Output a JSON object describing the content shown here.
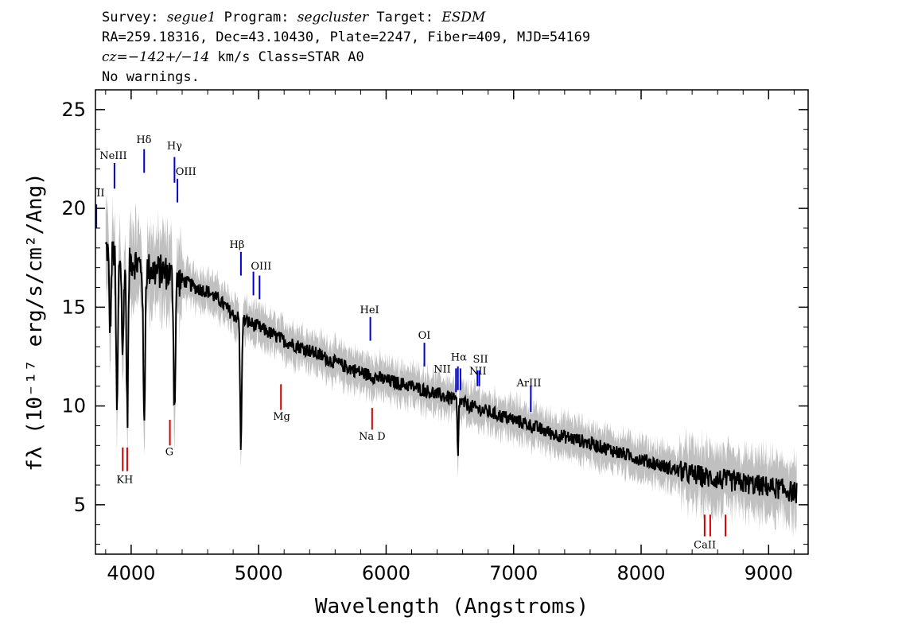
{
  "header": {
    "line1": {
      "survey_label": "Survey: ",
      "survey": "segue1",
      "program_label": " Program: ",
      "program": "segcluster",
      "target_label": " Target: ",
      "target": "ESDM"
    },
    "line2": "RA=259.18316, Dec=43.10430, Plate=2247, Fiber=409, MJD=54169",
    "line3": {
      "cz": "cz=−142+/−14",
      "rest": " km/s Class=STAR A0"
    },
    "line4": "No warnings."
  },
  "chart_data": {
    "type": "line",
    "xlabel": "Wavelength (Angstroms)",
    "ylabel": "fλ (10⁻¹⁷ erg/s/cm²/Ang)",
    "xlim": [
      3720,
      9310
    ],
    "ylim": [
      2.5,
      26
    ],
    "x_ticks": [
      4000,
      5000,
      6000,
      7000,
      8000,
      9000
    ],
    "y_ticks": [
      5,
      10,
      15,
      20,
      25
    ],
    "series": [
      {
        "color": "#000000",
        "x": [
          3800,
          3850,
          3900,
          3950,
          4000,
          4050,
          4100,
          4150,
          4200,
          4250,
          4300,
          4350,
          4400,
          4450,
          4500,
          4600,
          4700,
          4800,
          4900,
          5000,
          5200,
          5400,
          5600,
          5800,
          6000,
          6200,
          6400,
          6500,
          6700,
          6900,
          7100,
          7300,
          7500,
          7700,
          7900,
          8100,
          8300,
          8500,
          8700,
          8900,
          9100,
          9220
        ],
        "y": [
          18.0,
          17.8,
          17.6,
          17.5,
          17.4,
          17.2,
          17.0,
          16.9,
          16.8,
          16.8,
          16.7,
          16.3,
          16.4,
          16.2,
          16.0,
          15.8,
          15.3,
          14.6,
          14.3,
          14.0,
          13.3,
          12.8,
          12.2,
          11.7,
          11.3,
          11.0,
          10.6,
          10.4,
          9.9,
          9.5,
          9.1,
          8.6,
          8.3,
          7.9,
          7.5,
          7.1,
          6.7,
          6.4,
          6.2,
          6.0,
          5.8,
          5.6
        ]
      }
    ],
    "absorption_lines_flux": [
      {
        "x": 3835,
        "depth": 4.0
      },
      {
        "x": 3889,
        "depth": 8.0
      },
      {
        "x": 3934,
        "depth": 5.0
      },
      {
        "x": 3970,
        "depth": 8.0
      },
      {
        "x": 4102,
        "depth": 8.0
      },
      {
        "x": 4340,
        "depth": 6.5
      },
      {
        "x": 4861,
        "depth": 6.5
      },
      {
        "x": 6563,
        "depth": 3.0
      }
    ],
    "emission_lines": [
      {
        "label": "NeIII",
        "x": 3869,
        "y1": 22.3,
        "y2": 21.0
      },
      {
        "label": "Hδ",
        "x": 4102,
        "y1": 23.0,
        "y2": 21.8
      },
      {
        "label": "Hγ",
        "x": 4340,
        "y1": 22.6,
        "y2": 21.3
      },
      {
        "label": "OIII",
        "x": 4363,
        "y1": 21.5,
        "y2": 20.3
      },
      {
        "label": "OII",
        "x": 3727,
        "y1": 20.2,
        "y2": 19.0
      },
      {
        "label": "Hβ",
        "x": 4861,
        "y1": 17.8,
        "y2": 16.6
      },
      {
        "label": "OIII",
        "x": 4959,
        "y1": 16.8,
        "y2": 15.6
      },
      {
        "label": "OIII",
        "x": 5007,
        "y1": 16.6,
        "y2": 15.4
      },
      {
        "label": "HeI",
        "x": 5876,
        "y1": 14.5,
        "y2": 13.3
      },
      {
        "label": "OI",
        "x": 6300,
        "y1": 13.2,
        "y2": 12.0
      },
      {
        "label": "NII",
        "x": 6548,
        "y1": 11.9,
        "y2": 10.7
      },
      {
        "label": "Hα",
        "x": 6563,
        "y1": 12.0,
        "y2": 10.8
      },
      {
        "label": "NII",
        "x": 6583,
        "y1": 11.9,
        "y2": 10.8
      },
      {
        "label": "SII",
        "x": 6716,
        "y1": 11.8,
        "y2": 11.0
      },
      {
        "label": "SII",
        "x": 6731,
        "y1": 11.8,
        "y2": 11.0
      },
      {
        "label": "ArIII",
        "x": 7135,
        "y1": 11.0,
        "y2": 9.7
      }
    ],
    "absorption_lines": [
      {
        "label": "K",
        "x": 3934,
        "y1": 7.9,
        "y2": 6.7
      },
      {
        "label": "H",
        "x": 3969,
        "y1": 7.9,
        "y2": 6.7
      },
      {
        "label": "G",
        "x": 4304,
        "y1": 9.3,
        "y2": 8.0
      },
      {
        "label": "Mg",
        "x": 5175,
        "y1": 11.1,
        "y2": 9.8
      },
      {
        "label": "Na",
        "x": 5890,
        "y1": 9.9,
        "y2": 8.8
      },
      {
        "label": "CaII",
        "x": 8498,
        "y1": 4.5,
        "y2": 3.4
      },
      {
        "label": "CaII",
        "x": 8542,
        "y1": 4.5,
        "y2": 3.4
      },
      {
        "label": "CaII",
        "x": 8662,
        "y1": 4.5,
        "y2": 3.4
      }
    ],
    "line_label_texts": {
      "emission": [
        {
          "text": "II",
          "x": 3760,
          "y": 20.6
        },
        {
          "text": "NeIII",
          "x": 3860,
          "y": 22.5
        },
        {
          "text": "Hδ",
          "x": 4100,
          "y": 23.3
        },
        {
          "text": "Hγ",
          "x": 4340,
          "y": 23.0
        },
        {
          "text": "OIII",
          "x": 4430,
          "y": 21.7
        },
        {
          "text": "Hβ",
          "x": 4830,
          "y": 18.0
        },
        {
          "text": "OIII",
          "x": 5020,
          "y": 16.9
        },
        {
          "text": "HeI",
          "x": 5870,
          "y": 14.7
        },
        {
          "text": "OI",
          "x": 6300,
          "y": 13.4
        },
        {
          "text": "NII",
          "x": 6440,
          "y": 11.7
        },
        {
          "text": "Hα",
          "x": 6570,
          "y": 12.3
        },
        {
          "text": "SII",
          "x": 6740,
          "y": 12.2
        },
        {
          "text": "NII",
          "x": 6720,
          "y": 11.6
        },
        {
          "text": "ArIII",
          "x": 7120,
          "y": 11.0
        }
      ],
      "absorption": [
        {
          "text": "KH",
          "x": 3950,
          "y": 6.1
        },
        {
          "text": "G",
          "x": 4300,
          "y": 7.5
        },
        {
          "text": "Mg",
          "x": 5180,
          "y": 9.3
        },
        {
          "text": "Na  D",
          "x": 5890,
          "y": 8.3
        },
        {
          "text": "CaII",
          "x": 8500,
          "y": 2.8
        }
      ]
    },
    "colors": {
      "flux": "#000000",
      "error": "#c0c0c0",
      "emission": "#0000cc",
      "absorption": "#cc0000"
    }
  }
}
